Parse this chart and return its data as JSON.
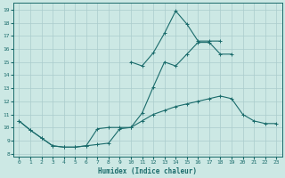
{
  "xlabel": "Humidex (Indice chaleur)",
  "bg_color": "#cce8e4",
  "grid_color": "#aacccc",
  "line_color": "#1a6b6b",
  "xlim": [
    -0.5,
    23.5
  ],
  "ylim": [
    7.8,
    19.5
  ],
  "xticks": [
    0,
    1,
    2,
    3,
    4,
    5,
    6,
    7,
    8,
    9,
    10,
    11,
    12,
    13,
    14,
    15,
    16,
    17,
    18,
    19,
    20,
    21,
    22,
    23
  ],
  "yticks": [
    8,
    9,
    10,
    11,
    12,
    13,
    14,
    15,
    16,
    17,
    18,
    19
  ],
  "line1_x": [
    0,
    1,
    2,
    3,
    4,
    5,
    6,
    7,
    8,
    9,
    10,
    11,
    12,
    13,
    14,
    15,
    16,
    17,
    18,
    19,
    20,
    21,
    22,
    23
  ],
  "line1_y": [
    10.5,
    9.8,
    9.2,
    8.6,
    8.5,
    8.5,
    8.6,
    8.7,
    8.8,
    9.9,
    10.0,
    10.5,
    11.0,
    11.3,
    11.6,
    11.8,
    12.0,
    12.2,
    12.4,
    12.2,
    11.0,
    10.5,
    10.3,
    10.3
  ],
  "line2_x": [
    0,
    1,
    2,
    3,
    4,
    5,
    6,
    7,
    8,
    9,
    10,
    11,
    12,
    13,
    14,
    15,
    16,
    17,
    18,
    19,
    20,
    21,
    22,
    23
  ],
  "line2_y": [
    10.5,
    9.8,
    9.2,
    8.6,
    8.5,
    8.5,
    8.6,
    9.9,
    10.0,
    10.0,
    10.0,
    11.1,
    13.1,
    15.0,
    14.7,
    15.6,
    16.5,
    16.5,
    15.6,
    15.6,
    null,
    null,
    null,
    null
  ],
  "line3_x": [
    10,
    11,
    12,
    13,
    14,
    15,
    16,
    17,
    18
  ],
  "line3_y": [
    15.0,
    14.7,
    15.7,
    17.2,
    18.9,
    17.9,
    16.6,
    16.6,
    16.6
  ]
}
